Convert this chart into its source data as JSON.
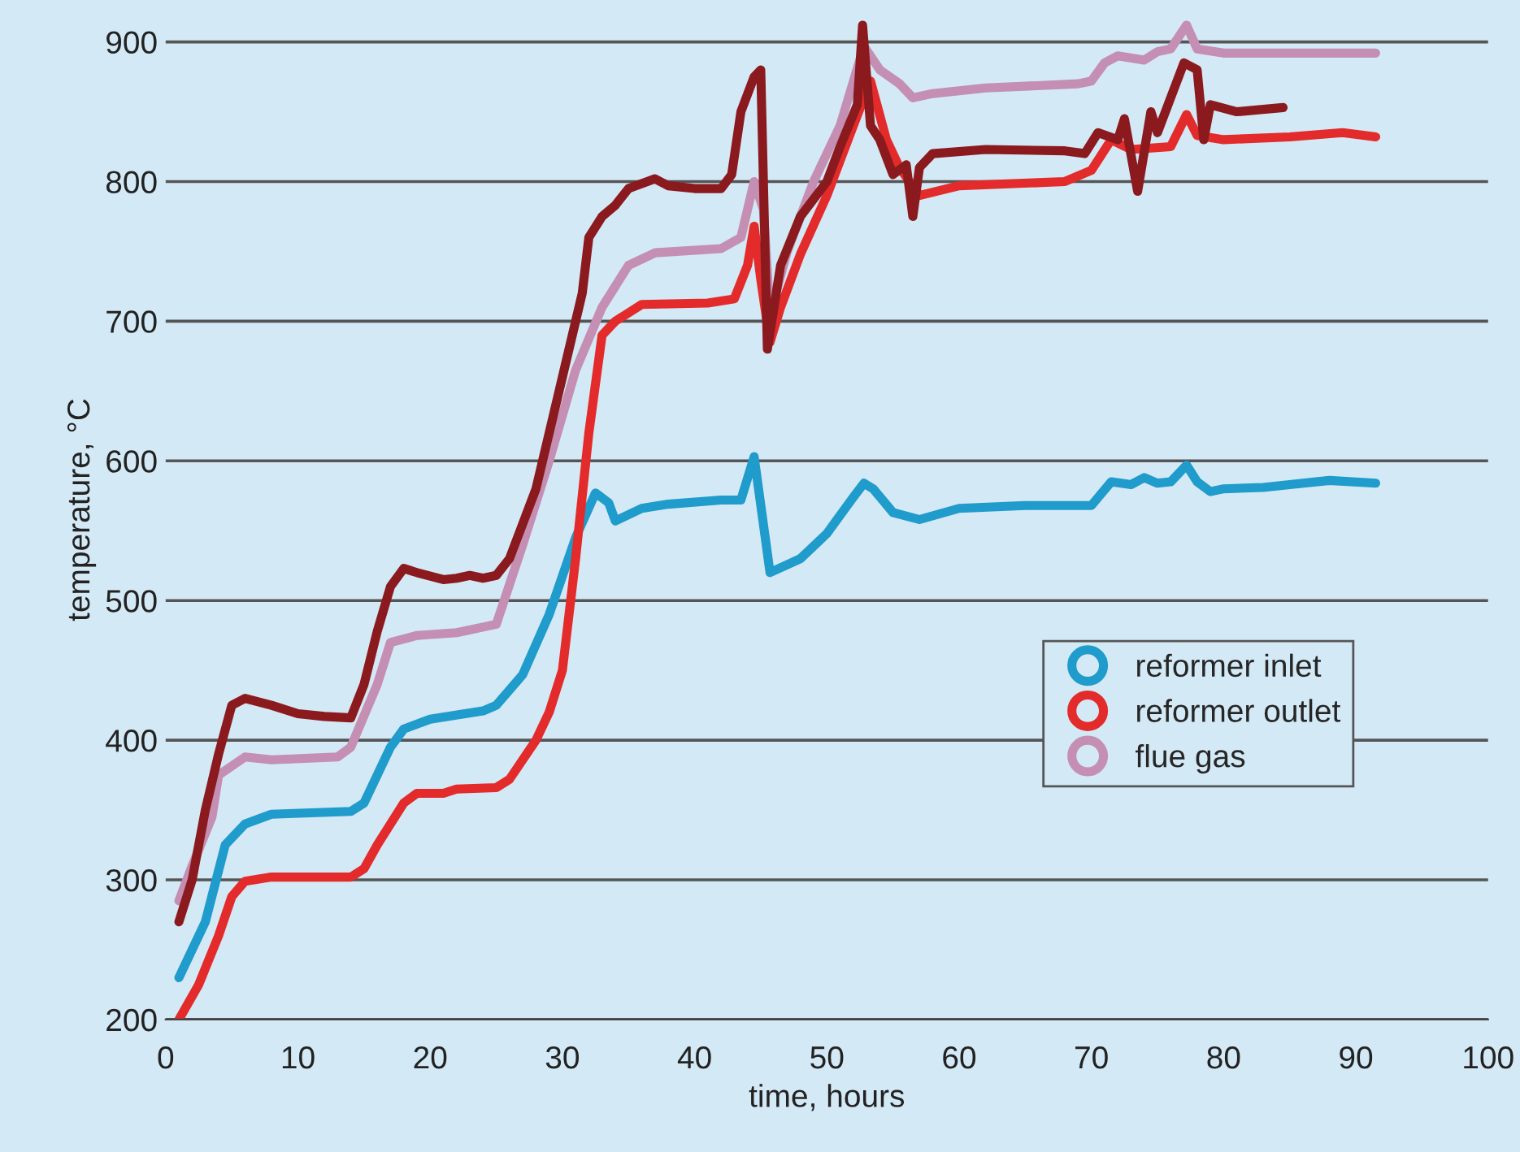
{
  "chart_data": {
    "type": "line",
    "xlabel": "time, hours",
    "ylabel": "temperature, °C",
    "xlim": [
      0,
      100
    ],
    "ylim": [
      200,
      930
    ],
    "xticks": [
      0,
      10,
      20,
      30,
      40,
      50,
      60,
      70,
      80,
      90,
      100
    ],
    "yticks": [
      200,
      300,
      400,
      500,
      600,
      700,
      800,
      900
    ],
    "grid": "y",
    "legend": "right",
    "series": [
      {
        "name": "reformer inlet",
        "color": "#1f9bcc",
        "x": [
          1,
          3,
          4.5,
          6,
          8,
          14,
          15,
          17,
          18,
          20,
          24,
          25,
          27,
          29,
          31,
          32.5,
          33.5,
          34,
          36,
          38,
          42,
          43.5,
          44.5,
          45.7,
          48,
          50,
          52,
          52.8,
          53.5,
          55,
          57,
          60,
          65,
          70,
          71.5,
          73,
          74,
          75,
          76,
          77.2,
          78,
          79,
          80,
          83,
          85,
          88,
          91.5
        ],
        "values": [
          230,
          270,
          325,
          340,
          347,
          349,
          355,
          395,
          408,
          415,
          421,
          425,
          447,
          490,
          545,
          577,
          570,
          557,
          566,
          569,
          572,
          572,
          603,
          520,
          530,
          548,
          574,
          584,
          580,
          563,
          558,
          566,
          568,
          568,
          585,
          583,
          588,
          584,
          585,
          597,
          585,
          578,
          580,
          581,
          583,
          586,
          584
        ]
      },
      {
        "name": "reformer outlet",
        "color": "#e32b2b",
        "x": [
          1,
          2.5,
          4,
          5,
          6,
          8,
          14,
          15,
          16,
          18,
          19,
          21,
          22,
          25,
          26,
          28,
          29,
          30,
          31,
          32,
          33,
          34,
          36,
          41,
          43,
          44,
          44.5,
          45,
          45.7,
          46.5,
          48,
          50,
          52,
          53.3,
          54.5,
          55.5,
          57,
          60,
          68,
          70,
          71.5,
          73,
          76,
          77.2,
          78,
          80,
          85,
          89,
          91.5
        ],
        "values": [
          200,
          225,
          260,
          288,
          299,
          302,
          302,
          308,
          325,
          355,
          362,
          362,
          365,
          366,
          372,
          400,
          420,
          450,
          530,
          620,
          690,
          700,
          712,
          713,
          716,
          740,
          768,
          730,
          685,
          710,
          748,
          790,
          840,
          872,
          830,
          810,
          790,
          797,
          800,
          808,
          830,
          823,
          825,
          848,
          833,
          830,
          832,
          835,
          832
        ]
      },
      {
        "name": "flue gas",
        "color": "#c48fb3",
        "x": [
          1,
          2,
          3.5,
          4,
          6,
          8,
          13,
          14,
          16,
          17,
          19,
          22,
          24,
          25,
          27,
          29,
          31,
          33,
          35,
          37,
          42,
          43.5,
          44.5,
          45.2,
          45.7,
          47,
          49,
          51,
          52.8,
          54,
          55.5,
          56.5,
          58,
          62,
          69,
          70,
          71,
          72,
          74,
          75,
          76,
          77.2,
          78,
          80,
          91.5
        ],
        "values": [
          285,
          310,
          345,
          375,
          388,
          386,
          388,
          395,
          440,
          470,
          475,
          477,
          481,
          483,
          540,
          600,
          665,
          710,
          740,
          749,
          752,
          760,
          800,
          780,
          705,
          750,
          800,
          840,
          897,
          880,
          870,
          860,
          863,
          867,
          870,
          872,
          885,
          890,
          887,
          893,
          895,
          912,
          895,
          892,
          892
        ]
      },
      {
        "color": "#8b1a1e",
        "x": [
          1,
          2,
          3,
          4,
          5,
          6,
          8,
          10,
          12,
          14,
          15,
          16,
          17,
          18,
          19,
          21,
          22,
          23,
          24,
          25,
          26,
          28,
          30,
          31,
          31.5,
          32,
          33,
          34,
          35,
          37,
          38,
          40,
          42,
          42.8,
          43.5,
          44.5,
          45,
          45.5,
          46.5,
          48,
          50,
          51,
          52.3,
          52.7,
          53.3,
          54,
          55,
          56,
          56.5,
          57,
          58,
          62,
          68,
          69.5,
          70.5,
          72,
          72.5,
          73.5,
          74.5,
          75,
          76,
          77,
          78,
          78.5,
          79,
          81,
          84.5
        ],
        "values": [
          270,
          300,
          350,
          390,
          425,
          430,
          425,
          419,
          417,
          416,
          440,
          478,
          510,
          523,
          520,
          515,
          516,
          518,
          516,
          518,
          530,
          580,
          660,
          700,
          720,
          760,
          775,
          783,
          795,
          802,
          797,
          795,
          795,
          805,
          850,
          875,
          880,
          680,
          740,
          775,
          800,
          825,
          855,
          912,
          840,
          830,
          805,
          812,
          775,
          810,
          820,
          823,
          822,
          820,
          835,
          830,
          845,
          793,
          850,
          835,
          860,
          885,
          880,
          830,
          855,
          850,
          853
        ]
      }
    ]
  }
}
